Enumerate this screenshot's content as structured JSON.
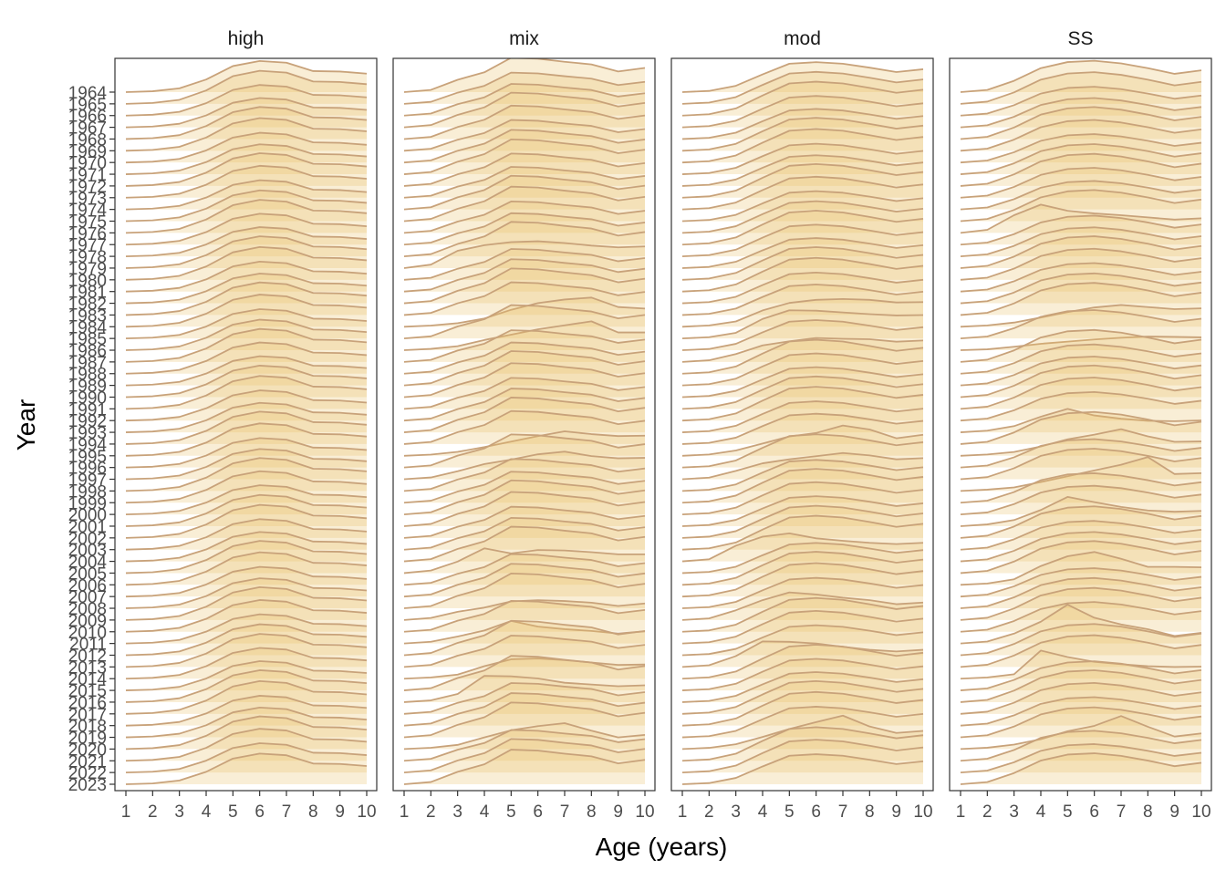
{
  "chart_data": {
    "type": "area",
    "subtype": "ridgeline",
    "xlabel": "Age (years)",
    "ylabel": "Year",
    "x": [
      1,
      2,
      3,
      4,
      5,
      6,
      7,
      8,
      9,
      10
    ],
    "xlim": [
      1,
      10
    ],
    "years": [
      1964,
      1965,
      1966,
      1967,
      1968,
      1969,
      1970,
      1971,
      1972,
      1973,
      1974,
      1975,
      1976,
      1977,
      1978,
      1979,
      1980,
      1981,
      1982,
      1983,
      1984,
      1985,
      1986,
      1987,
      1988,
      1989,
      1990,
      1991,
      1992,
      1993,
      1994,
      1995,
      1996,
      1997,
      1998,
      1999,
      2000,
      2001,
      2002,
      2003,
      2004,
      2005,
      2006,
      2007,
      2008,
      2009,
      2010,
      2011,
      2012,
      2013,
      2014,
      2015,
      2016,
      2017,
      2018,
      2019,
      2020,
      2021,
      2022,
      2023
    ],
    "value_note": "relative proportion at age; ridge height normalized",
    "fill_color": "#e8c068",
    "line_color": "#c8a27a",
    "grid": false,
    "panels": [
      {
        "name": "high",
        "default_profile": [
          0.0,
          0.02,
          0.09,
          0.3,
          0.62,
          0.74,
          0.7,
          0.5,
          0.49,
          0.44
        ],
        "overrides": {}
      },
      {
        "name": "mix",
        "default_profile": [
          0.0,
          0.05,
          0.28,
          0.45,
          0.78,
          0.76,
          0.69,
          0.63,
          0.47,
          0.55
        ],
        "overrides": {
          "1979": [
            0.0,
            0.08,
            0.4,
            0.53,
            0.6,
            0.62,
            0.58,
            0.52,
            0.48,
            0.5
          ],
          "1984": [
            0.0,
            0.03,
            0.09,
            0.21,
            0.43,
            0.6,
            0.69,
            0.74,
            0.5,
            0.46
          ],
          "1986": [
            0.0,
            0.03,
            0.09,
            0.23,
            0.35,
            0.47,
            0.56,
            0.65,
            0.4,
            0.4
          ],
          "1995": [
            0.0,
            0.03,
            0.1,
            0.22,
            0.36,
            0.5,
            0.62,
            0.55,
            0.5,
            0.51
          ],
          "1997": [
            0.0,
            0.04,
            0.18,
            0.34,
            0.44,
            0.56,
            0.62,
            0.52,
            0.47,
            0.48
          ],
          "2005": [
            0.0,
            0.06,
            0.27,
            0.58,
            0.46,
            0.54,
            0.53,
            0.49,
            0.44,
            0.44
          ],
          "2009": [
            0.0,
            0.05,
            0.2,
            0.3,
            0.45,
            0.48,
            0.46,
            0.42,
            0.34,
            0.4
          ],
          "2011": [
            0.0,
            0.04,
            0.16,
            0.3,
            0.52,
            0.39,
            0.33,
            0.29,
            0.23,
            0.28
          ],
          "2014": [
            0.0,
            0.03,
            0.1,
            0.31,
            0.48,
            0.5,
            0.46,
            0.4,
            0.34,
            0.35
          ],
          "2016": [
            0.0,
            0.04,
            0.19,
            0.61,
            0.6,
            0.55,
            0.45,
            0.41,
            0.37,
            0.39
          ],
          "2020": [
            0.0,
            0.03,
            0.1,
            0.28,
            0.45,
            0.55,
            0.62,
            0.44,
            0.28,
            0.34
          ]
        }
      },
      {
        "name": "mod",
        "default_profile": [
          0.0,
          0.03,
          0.16,
          0.45,
          0.72,
          0.76,
          0.72,
          0.62,
          0.51,
          0.58
        ],
        "overrides": {
          "1984": [
            0.0,
            0.03,
            0.12,
            0.37,
            0.54,
            0.61,
            0.63,
            0.61,
            0.55,
            0.56
          ],
          "1985": [
            0.0,
            0.03,
            0.13,
            0.45,
            0.65,
            0.64,
            0.6,
            0.56,
            0.53,
            0.54
          ],
          "1987": [
            0.0,
            0.04,
            0.19,
            0.4,
            0.5,
            0.58,
            0.56,
            0.55,
            0.49,
            0.52
          ],
          "1995": [
            0.0,
            0.03,
            0.12,
            0.28,
            0.44,
            0.52,
            0.69,
            0.6,
            0.4,
            0.48
          ],
          "1997": [
            0.0,
            0.04,
            0.21,
            0.4,
            0.5,
            0.58,
            0.66,
            0.6,
            0.5,
            0.53
          ],
          "2004": [
            0.0,
            0.05,
            0.38,
            0.6,
            0.68,
            0.56,
            0.5,
            0.45,
            0.42,
            0.45
          ],
          "2009": [
            0.0,
            0.04,
            0.24,
            0.49,
            0.68,
            0.63,
            0.55,
            0.49,
            0.39,
            0.43
          ],
          "2013": [
            0.0,
            0.04,
            0.26,
            0.61,
            0.6,
            0.56,
            0.48,
            0.41,
            0.37,
            0.41
          ],
          "2020": [
            0.0,
            0.03,
            0.12,
            0.3,
            0.5,
            0.67,
            0.83,
            0.56,
            0.4,
            0.45
          ]
        }
      },
      {
        "name": "SS",
        "default_profile": [
          0.0,
          0.05,
          0.26,
          0.55,
          0.69,
          0.72,
          0.66,
          0.55,
          0.42,
          0.5
        ],
        "overrides": {
          "1976": [
            0.0,
            0.07,
            0.4,
            0.64,
            0.5,
            0.44,
            0.4,
            0.35,
            0.3,
            0.33
          ],
          "1984": [
            0.0,
            0.03,
            0.1,
            0.22,
            0.35,
            0.46,
            0.52,
            0.47,
            0.42,
            0.44
          ],
          "1986": [
            0.0,
            0.02,
            0.08,
            0.15,
            0.2,
            0.25,
            0.29,
            0.32,
            0.31,
            0.3
          ],
          "1993": [
            0.0,
            0.04,
            0.15,
            0.38,
            0.57,
            0.41,
            0.33,
            0.28,
            0.27,
            0.29
          ],
          "1995": [
            0.0,
            0.03,
            0.09,
            0.22,
            0.39,
            0.5,
            0.63,
            0.46,
            0.33,
            0.34
          ],
          "1998": [
            0.0,
            0.03,
            0.08,
            0.2,
            0.33,
            0.46,
            0.59,
            0.76,
            0.38,
            0.4
          ],
          "2001": [
            0.0,
            0.04,
            0.14,
            0.37,
            0.67,
            0.55,
            0.44,
            0.36,
            0.33,
            0.35
          ],
          "2006": [
            0.0,
            0.03,
            0.13,
            0.44,
            0.67,
            0.77,
            0.61,
            0.42,
            0.42,
            0.41
          ],
          "2011": [
            0.0,
            0.05,
            0.25,
            0.55,
            0.98,
            0.65,
            0.48,
            0.36,
            0.19,
            0.27
          ],
          "2014": [
            0.0,
            0.03,
            0.11,
            0.7,
            0.54,
            0.42,
            0.36,
            0.31,
            0.29,
            0.3
          ],
          "2020": [
            0.0,
            0.03,
            0.1,
            0.22,
            0.4,
            0.52,
            0.74,
            0.5,
            0.28,
            0.35
          ]
        }
      }
    ]
  }
}
